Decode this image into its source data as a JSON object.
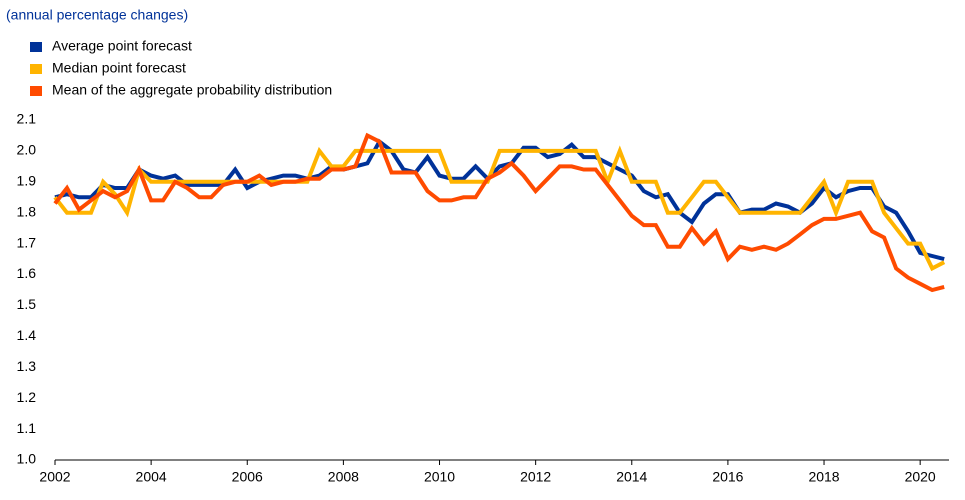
{
  "chart_data": {
    "type": "line",
    "subtitle": "(annual percentage changes)",
    "x": [
      2002,
      2002.25,
      2002.5,
      2002.75,
      2003,
      2003.25,
      2003.5,
      2003.75,
      2004,
      2004.25,
      2004.5,
      2004.75,
      2005,
      2005.25,
      2005.5,
      2005.75,
      2006,
      2006.25,
      2006.5,
      2006.75,
      2007,
      2007.25,
      2007.5,
      2007.75,
      2008,
      2008.25,
      2008.5,
      2008.75,
      2009,
      2009.25,
      2009.5,
      2009.75,
      2010,
      2010.25,
      2010.5,
      2010.75,
      2011,
      2011.25,
      2011.5,
      2011.75,
      2012,
      2012.25,
      2012.5,
      2012.75,
      2013,
      2013.25,
      2013.5,
      2013.75,
      2014,
      2014.25,
      2014.5,
      2014.75,
      2015,
      2015.25,
      2015.5,
      2015.75,
      2016,
      2016.25,
      2016.5,
      2016.75,
      2017,
      2017.25,
      2017.5,
      2017.75,
      2018,
      2018.25,
      2018.5,
      2018.75,
      2019,
      2019.25,
      2019.5,
      2019.75,
      2020,
      2020.25,
      2020.5
    ],
    "series": [
      {
        "name": "Average point forecast",
        "color": "#003299",
        "values": [
          1.85,
          1.86,
          1.85,
          1.85,
          1.89,
          1.88,
          1.88,
          1.94,
          1.92,
          1.91,
          1.92,
          1.89,
          1.89,
          1.89,
          1.89,
          1.94,
          1.88,
          1.9,
          1.91,
          1.92,
          1.92,
          1.91,
          1.92,
          1.95,
          1.94,
          1.95,
          1.96,
          2.03,
          2.0,
          1.94,
          1.93,
          1.98,
          1.92,
          1.91,
          1.91,
          1.95,
          1.91,
          1.95,
          1.96,
          2.01,
          2.01,
          1.98,
          1.99,
          2.02,
          1.98,
          1.98,
          1.96,
          1.94,
          1.92,
          1.87,
          1.85,
          1.86,
          1.8,
          1.77,
          1.83,
          1.86,
          1.86,
          1.8,
          1.81,
          1.81,
          1.83,
          1.82,
          1.8,
          1.83,
          1.88,
          1.85,
          1.87,
          1.88,
          1.88,
          1.82,
          1.8,
          1.74,
          1.67,
          1.66,
          1.65
        ]
      },
      {
        "name": "Median point forecast",
        "color": "#ffb400",
        "values": [
          1.85,
          1.8,
          1.8,
          1.8,
          1.9,
          1.86,
          1.8,
          1.94,
          1.9,
          1.9,
          1.9,
          1.9,
          1.9,
          1.9,
          1.9,
          1.9,
          1.9,
          1.9,
          1.9,
          1.9,
          1.9,
          1.9,
          2.0,
          1.95,
          1.95,
          2.0,
          2.0,
          2.0,
          2.0,
          2.0,
          2.0,
          2.0,
          2.0,
          1.9,
          1.9,
          1.9,
          1.9,
          2.0,
          2.0,
          2.0,
          2.0,
          2.0,
          2.0,
          2.0,
          2.0,
          2.0,
          1.9,
          2.0,
          1.9,
          1.9,
          1.9,
          1.8,
          1.8,
          1.85,
          1.9,
          1.9,
          1.85,
          1.8,
          1.8,
          1.8,
          1.8,
          1.8,
          1.8,
          1.85,
          1.9,
          1.8,
          1.9,
          1.9,
          1.9,
          1.8,
          1.75,
          1.7,
          1.7,
          1.62,
          1.64
        ]
      },
      {
        "name": "Mean of the aggregate probability distribution",
        "color": "#ff4b00",
        "values": [
          1.83,
          1.88,
          1.81,
          1.84,
          1.87,
          1.85,
          1.87,
          1.94,
          1.84,
          1.84,
          1.9,
          1.88,
          1.85,
          1.85,
          1.89,
          1.9,
          1.9,
          1.92,
          1.89,
          1.9,
          1.9,
          1.91,
          1.91,
          1.94,
          1.94,
          1.95,
          2.05,
          2.03,
          1.93,
          1.93,
          1.93,
          1.87,
          1.84,
          1.84,
          1.85,
          1.85,
          1.91,
          1.93,
          1.96,
          1.92,
          1.87,
          1.91,
          1.95,
          1.95,
          1.94,
          1.94,
          1.89,
          1.84,
          1.79,
          1.76,
          1.76,
          1.69,
          1.69,
          1.75,
          1.7,
          1.74,
          1.65,
          1.69,
          1.68,
          1.69,
          1.68,
          1.7,
          1.73,
          1.76,
          1.78,
          1.78,
          1.79,
          1.8,
          1.74,
          1.72,
          1.62,
          1.59,
          1.57,
          1.55,
          1.56
        ]
      }
    ],
    "xlim": [
      2002,
      2020.6
    ],
    "xticks": [
      2002,
      2004,
      2006,
      2008,
      2010,
      2012,
      2014,
      2016,
      2018,
      2020
    ],
    "ylim": [
      1.0,
      2.1
    ],
    "yticks": [
      {
        "value": 1.0,
        "label": "1.0"
      },
      {
        "value": 1.1,
        "label": "1.1"
      },
      {
        "value": 1.2,
        "label": "1.2"
      },
      {
        "value": 1.3,
        "label": "1.3"
      },
      {
        "value": 1.4,
        "label": "1.4"
      },
      {
        "value": 1.5,
        "label": "1.5"
      },
      {
        "value": 1.6,
        "label": "1.6"
      },
      {
        "value": 1.7,
        "label": "1.7"
      },
      {
        "value": 1.8,
        "label": "1.8"
      },
      {
        "value": 1.9,
        "label": "1.9"
      },
      {
        "value": 2.0,
        "label": "2.0"
      },
      {
        "value": 2.1,
        "label": "2.1"
      }
    ],
    "grid": false
  }
}
